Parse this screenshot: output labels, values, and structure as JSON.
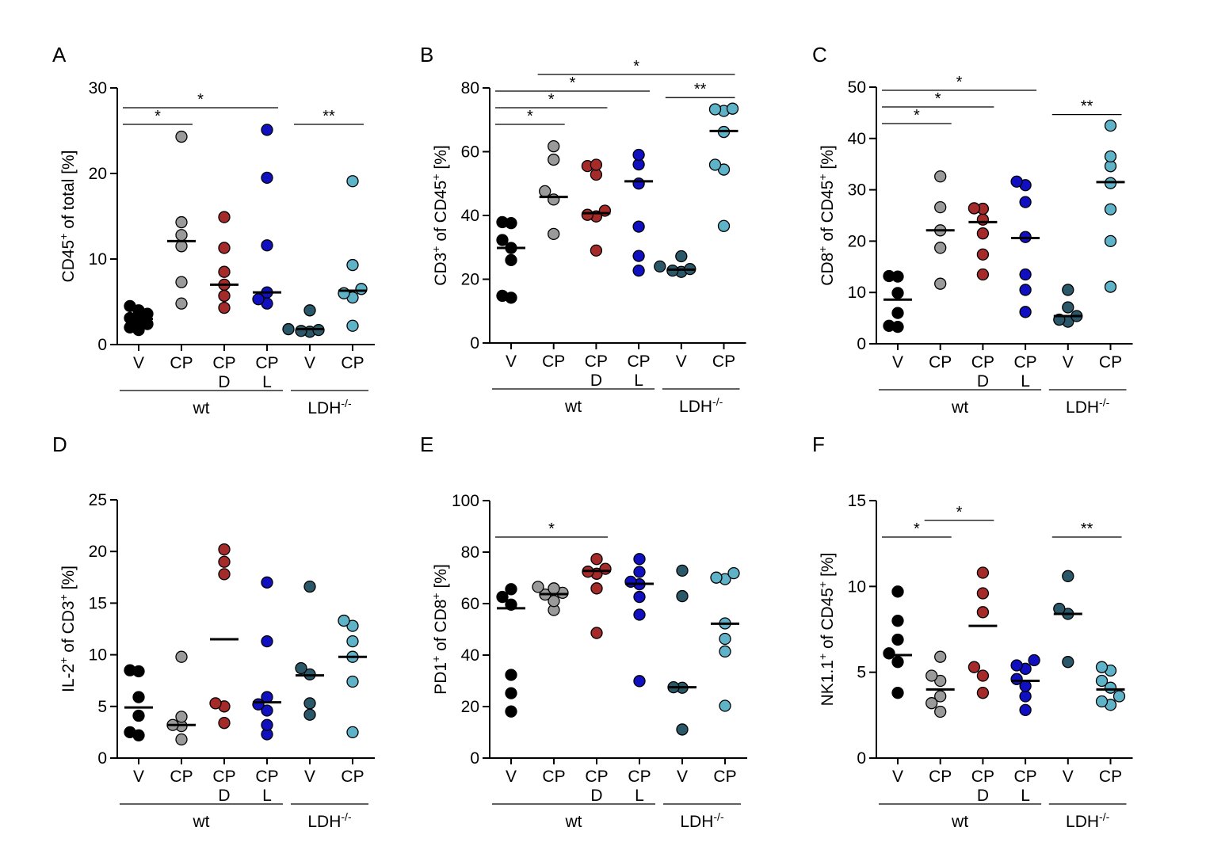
{
  "colors": {
    "V_wt": "#000000",
    "CP_wt": "#9a9a9a",
    "CPD_wt": "#a52a2a",
    "CPL_wt": "#1010c0",
    "V_ldh": "#2b5868",
    "CP_ldh": "#5fb3c8"
  },
  "chart_data": [
    {
      "type": "scatter",
      "letter": "A",
      "ylabel": {
        "pre": "CD45",
        "sup": "+",
        "post": " of total [%]"
      },
      "ylim": [
        0,
        30
      ],
      "yticks": [
        0,
        10,
        20,
        30
      ],
      "categories": [
        {
          "label": "V",
          "sub": "",
          "color_key": "V_wt",
          "mean": 3.0,
          "values": [
            1.7,
            2.0,
            2.4,
            2.8,
            3.1,
            3.6,
            4.0,
            4.5
          ]
        },
        {
          "label": "CP",
          "sub": "",
          "color_key": "CP_wt",
          "mean": 12.1,
          "values": [
            4.8,
            7.3,
            11.5,
            12.8,
            14.3,
            24.3
          ]
        },
        {
          "label": "CP",
          "sub": "D",
          "color_key": "CPD_wt",
          "mean": 7.0,
          "values": [
            4.3,
            5.7,
            7.0,
            8.5,
            11.3,
            14.9
          ]
        },
        {
          "label": "CP",
          "sub": "L",
          "color_key": "CPL_wt",
          "mean": 6.1,
          "values": [
            4.8,
            5.3,
            6.1,
            11.6,
            19.5,
            25.1
          ]
        },
        {
          "label": "V",
          "sub": "",
          "color_key": "V_ldh",
          "mean": 1.8,
          "values": [
            1.5,
            1.6,
            1.7,
            1.8,
            4.0
          ]
        },
        {
          "label": "CP",
          "sub": "",
          "color_key": "CP_ldh",
          "mean": 6.3,
          "values": [
            2.2,
            5.5,
            6.0,
            6.5,
            9.3,
            19.1
          ]
        }
      ],
      "groups": [
        {
          "label": "wt",
          "sup": "",
          "from": 0,
          "to": 3
        },
        {
          "label": "LDH",
          "sup": "-/-",
          "from": 4,
          "to": 5
        }
      ],
      "significance": [
        {
          "from": 0,
          "to": 1,
          "label": "*"
        },
        {
          "from": 0,
          "to": 3,
          "label": "*"
        },
        {
          "from": 4,
          "to": 5,
          "label": "**"
        }
      ]
    },
    {
      "type": "scatter",
      "letter": "B",
      "ylabel": {
        "pre": "CD3",
        "sup": "+",
        "post": " of CD45",
        "sup2": "+",
        "post2": " [%]"
      },
      "ylim": [
        0,
        80
      ],
      "yticks": [
        0,
        20,
        40,
        60,
        80
      ],
      "categories": [
        {
          "label": "V",
          "sub": "",
          "color_key": "V_wt",
          "mean": 29.8,
          "values": [
            14.2,
            14.8,
            26.0,
            29.8,
            32.3,
            37.6,
            37.9
          ]
        },
        {
          "label": "CP",
          "sub": "",
          "color_key": "CP_wt",
          "mean": 45.8,
          "values": [
            34.2,
            45.0,
            47.6,
            57.5,
            61.7
          ]
        },
        {
          "label": "CP",
          "sub": "D",
          "color_key": "CPD_wt",
          "mean": 40.7,
          "values": [
            29.0,
            39.7,
            40.2,
            41.5,
            52.8,
            55.5,
            55.9
          ]
        },
        {
          "label": "CP",
          "sub": "L",
          "color_key": "CPL_wt",
          "mean": 50.7,
          "values": [
            22.7,
            27.3,
            36.5,
            50.0,
            56.0,
            59.0
          ]
        },
        {
          "label": "V",
          "sub": "",
          "color_key": "V_ldh",
          "mean": 23.0,
          "values": [
            22.3,
            22.7,
            23.2,
            24.0,
            27.2
          ]
        },
        {
          "label": "CP",
          "sub": "",
          "color_key": "CP_ldh",
          "mean": 66.5,
          "values": [
            36.7,
            54.4,
            55.9,
            66.2,
            72.8,
            73.3,
            73.5
          ]
        }
      ],
      "groups": [
        {
          "label": "wt",
          "sup": "",
          "from": 0,
          "to": 3
        },
        {
          "label": "LDH",
          "sup": "-/-",
          "from": 4,
          "to": 5
        }
      ],
      "significance": [
        {
          "from": 0,
          "to": 1,
          "label": "*"
        },
        {
          "from": 0,
          "to": 2,
          "label": "*"
        },
        {
          "from": 0,
          "to": 3,
          "label": "*"
        },
        {
          "from": 1,
          "to": 5,
          "label": "*"
        },
        {
          "from": 4,
          "to": 5,
          "label": "**"
        }
      ]
    },
    {
      "type": "scatter",
      "letter": "C",
      "ylabel": {
        "pre": "CD8",
        "sup": "+",
        "post": " of CD45",
        "sup2": "+",
        "post2": " [%]"
      },
      "ylim": [
        0,
        50
      ],
      "yticks": [
        0,
        10,
        20,
        30,
        40,
        50
      ],
      "categories": [
        {
          "label": "V",
          "sub": "",
          "color_key": "V_wt",
          "mean": 8.6,
          "values": [
            3.3,
            3.5,
            6.0,
            9.9,
            13.1,
            13.2
          ]
        },
        {
          "label": "CP",
          "sub": "",
          "color_key": "CP_wt",
          "mean": 22.1,
          "values": [
            11.7,
            18.7,
            22.1,
            26.6,
            32.6
          ]
        },
        {
          "label": "CP",
          "sub": "D",
          "color_key": "CPD_wt",
          "mean": 23.7,
          "values": [
            13.5,
            17.4,
            21.5,
            24.2,
            26.3,
            26.4
          ]
        },
        {
          "label": "CP",
          "sub": "L",
          "color_key": "CPL_wt",
          "mean": 20.6,
          "values": [
            6.2,
            10.5,
            13.5,
            20.8,
            27.6,
            30.9,
            31.6
          ]
        },
        {
          "label": "V",
          "sub": "",
          "color_key": "V_ldh",
          "mean": 5.4,
          "values": [
            4.3,
            4.7,
            5.4,
            7.1,
            10.5
          ]
        },
        {
          "label": "CP",
          "sub": "",
          "color_key": "CP_ldh",
          "mean": 31.5,
          "values": [
            11.1,
            20.0,
            26.2,
            31.3,
            34.6,
            36.5,
            42.5
          ]
        }
      ],
      "groups": [
        {
          "label": "wt",
          "sup": "",
          "from": 0,
          "to": 3
        },
        {
          "label": "LDH",
          "sup": "-/-",
          "from": 4,
          "to": 5
        }
      ],
      "significance": [
        {
          "from": 0,
          "to": 1,
          "label": "*"
        },
        {
          "from": 0,
          "to": 2,
          "label": "*"
        },
        {
          "from": 0,
          "to": 3,
          "label": "*"
        },
        {
          "from": 4,
          "to": 5,
          "label": "**"
        }
      ]
    },
    {
      "type": "scatter",
      "letter": "D",
      "ylabel": {
        "pre": "IL-2",
        "sup": "+",
        "post": " of CD3",
        "sup2": "+",
        "post2": " [%]"
      },
      "ylim": [
        0,
        25
      ],
      "yticks": [
        0,
        5,
        10,
        15,
        20,
        25
      ],
      "categories": [
        {
          "label": "V",
          "sub": "",
          "color_key": "V_wt",
          "mean": 4.9,
          "values": [
            2.2,
            2.5,
            4.1,
            5.9,
            8.4,
            8.5
          ]
        },
        {
          "label": "CP",
          "sub": "",
          "color_key": "CP_wt",
          "mean": 3.2,
          "values": [
            1.8,
            3.1,
            3.2,
            4.0,
            9.8
          ]
        },
        {
          "label": "CP",
          "sub": "D",
          "color_key": "CPD_wt",
          "mean": 11.5,
          "values": [
            3.4,
            5.0,
            5.3,
            17.8,
            19.0,
            20.2
          ]
        },
        {
          "label": "CP",
          "sub": "L",
          "color_key": "CPL_wt",
          "mean": 5.4,
          "values": [
            2.3,
            3.2,
            4.6,
            5.2,
            5.9,
            11.3,
            17.0
          ]
        },
        {
          "label": "V",
          "sub": "",
          "color_key": "V_ldh",
          "mean": 8.0,
          "values": [
            4.2,
            5.3,
            8.1,
            8.7,
            16.6
          ]
        },
        {
          "label": "CP",
          "sub": "",
          "color_key": "CP_ldh",
          "mean": 9.8,
          "values": [
            2.5,
            7.4,
            9.8,
            11.3,
            12.8,
            13.3
          ]
        }
      ],
      "groups": [
        {
          "label": "wt",
          "sup": "",
          "from": 0,
          "to": 3
        },
        {
          "label": "LDH",
          "sup": "-/-",
          "from": 4,
          "to": 5
        }
      ],
      "significance": []
    },
    {
      "type": "scatter",
      "letter": "E",
      "ylabel": {
        "pre": "PD1",
        "sup": "+",
        "post": " of CD8",
        "sup2": "+",
        "post2": " [%]"
      },
      "ylim": [
        0,
        100
      ],
      "yticks": [
        0,
        20,
        40,
        60,
        80,
        100
      ],
      "categories": [
        {
          "label": "V",
          "sub": "",
          "color_key": "V_wt",
          "mean": 58.2,
          "values": [
            18.1,
            25.2,
            32.3,
            59.6,
            62.6,
            65.6
          ]
        },
        {
          "label": "CP",
          "sub": "",
          "color_key": "CP_wt",
          "mean": 63.7,
          "values": [
            57.5,
            61.0,
            63.5,
            64.2,
            65.9,
            66.5
          ]
        },
        {
          "label": "CP",
          "sub": "D",
          "color_key": "CPD_wt",
          "mean": 72.7,
          "values": [
            48.6,
            65.9,
            71.6,
            72.4,
            73.5,
            77.3
          ]
        },
        {
          "label": "CP",
          "sub": "L",
          "color_key": "CPL_wt",
          "mean": 67.7,
          "values": [
            29.9,
            55.7,
            62.6,
            67.5,
            68.5,
            72.3,
            77.3
          ]
        },
        {
          "label": "V",
          "sub": "",
          "color_key": "V_ldh",
          "mean": 27.5,
          "values": [
            11.1,
            27.3,
            27.5,
            62.9,
            72.8
          ]
        },
        {
          "label": "CP",
          "sub": "",
          "color_key": "CP_ldh",
          "mean": 52.2,
          "values": [
            20.3,
            41.4,
            46.3,
            52.3,
            69.5,
            70.1,
            71.8
          ]
        }
      ],
      "groups": [
        {
          "label": "wt",
          "sup": "",
          "from": 0,
          "to": 3
        },
        {
          "label": "LDH",
          "sup": "-/-",
          "from": 4,
          "to": 5
        }
      ],
      "significance": [
        {
          "from": 0,
          "to": 2,
          "label": "*"
        }
      ]
    },
    {
      "type": "scatter",
      "letter": "F",
      "ylabel": {
        "pre": "NK1.1",
        "sup": "+",
        "post": " of CD45",
        "sup2": "+",
        "post2": " [%]"
      },
      "ylim": [
        0,
        15
      ],
      "yticks": [
        0,
        5,
        10,
        15
      ],
      "categories": [
        {
          "label": "V",
          "sub": "",
          "color_key": "V_wt",
          "mean": 6.0,
          "values": [
            3.8,
            5.6,
            6.1,
            6.9,
            8.0,
            9.7
          ]
        },
        {
          "label": "CP",
          "sub": "",
          "color_key": "CP_wt",
          "mean": 4.0,
          "values": [
            2.7,
            3.2,
            3.6,
            4.5,
            4.8,
            5.9
          ]
        },
        {
          "label": "CP",
          "sub": "D",
          "color_key": "CPD_wt",
          "mean": 7.7,
          "values": [
            3.8,
            4.8,
            5.3,
            8.5,
            9.6,
            10.8
          ]
        },
        {
          "label": "CP",
          "sub": "L",
          "color_key": "CPL_wt",
          "mean": 4.5,
          "values": [
            2.8,
            3.6,
            4.2,
            4.6,
            5.2,
            5.4,
            5.7
          ]
        },
        {
          "label": "V",
          "sub": "",
          "color_key": "V_ldh",
          "mean": 8.4,
          "values": [
            5.6,
            8.4,
            8.7,
            10.6
          ]
        },
        {
          "label": "CP",
          "sub": "",
          "color_key": "CP_ldh",
          "mean": 4.0,
          "values": [
            3.1,
            3.3,
            3.6,
            4.1,
            4.5,
            5.1,
            5.3
          ]
        }
      ],
      "groups": [
        {
          "label": "wt",
          "sup": "",
          "from": 0,
          "to": 3
        },
        {
          "label": "LDH",
          "sup": "-/-",
          "from": 4,
          "to": 5
        }
      ],
      "significance": [
        {
          "from": 0,
          "to": 1,
          "label": "*"
        },
        {
          "from": 1,
          "to": 2,
          "label": "*"
        },
        {
          "from": 4,
          "to": 5,
          "label": "**"
        }
      ]
    }
  ]
}
